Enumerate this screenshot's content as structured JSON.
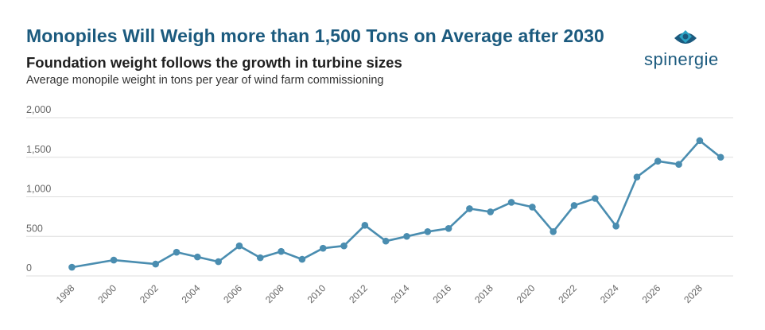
{
  "header": {
    "title": "Monopiles Will Weigh more than 1,500 Tons on Average after 2030",
    "subtitle": "Foundation weight follows the growth in turbine sizes",
    "description": "Average monopile weight in tons per year of wind farm commissioning"
  },
  "logo": {
    "text": "spinergie",
    "icon": "eye-icon"
  },
  "colors": {
    "title": "#1b5a7e",
    "line": "#4a8db0",
    "grid": "#dddddd",
    "logo_accent": "#2ba3c4"
  },
  "chart_data": {
    "type": "line",
    "title": "",
    "xlabel": "",
    "ylabel": "",
    "ylim": [
      0,
      2000
    ],
    "y_ticks": [
      0,
      500,
      1000,
      1500,
      2000
    ],
    "y_tick_labels": [
      "0",
      "500",
      "1,000",
      "1,500",
      "2,000"
    ],
    "x_ticks": [
      1998,
      2000,
      2002,
      2004,
      2006,
      2008,
      2010,
      2012,
      2014,
      2016,
      2018,
      2020,
      2022,
      2024,
      2026,
      2028
    ],
    "grid": true,
    "legend": "none",
    "series": [
      {
        "x": [
          1998,
          2000,
          2002,
          2003,
          2004,
          2005,
          2006,
          2007,
          2008,
          2009,
          2010,
          2011,
          2012,
          2013,
          2014,
          2015,
          2016,
          2017,
          2018,
          2019,
          2020,
          2021,
          2022,
          2023,
          2024,
          2025,
          2026,
          2027,
          2028,
          2029
        ],
        "values": [
          110,
          200,
          150,
          300,
          240,
          180,
          380,
          230,
          310,
          210,
          350,
          380,
          640,
          440,
          500,
          560,
          600,
          850,
          810,
          930,
          870,
          560,
          890,
          980,
          630,
          1250,
          1450,
          1410,
          1710,
          1500
        ]
      }
    ]
  }
}
